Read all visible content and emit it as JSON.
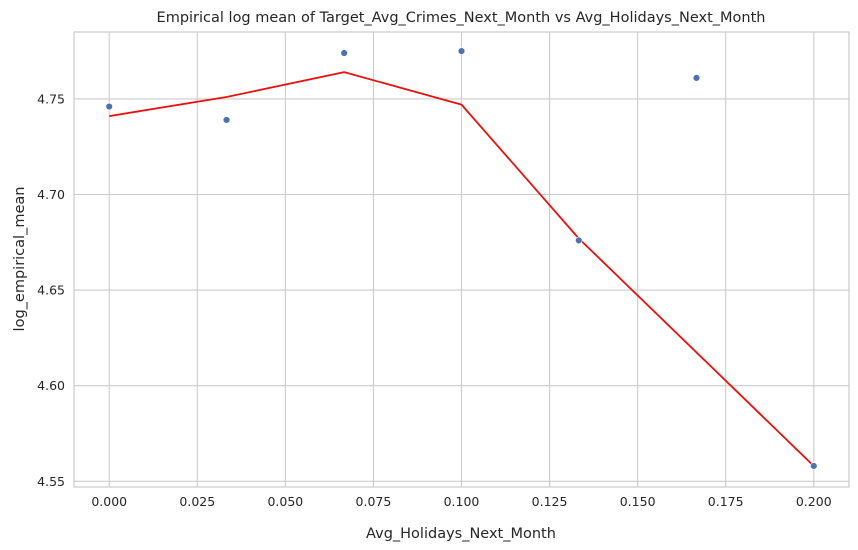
{
  "chart_data": {
    "type": "scatter",
    "title": "Empirical log mean of Target_Avg_Crimes_Next_Month vs Avg_Holidays_Next_Month",
    "xlabel": "Avg_Holidays_Next_Month",
    "ylabel": "log_empirical_mean",
    "xlim": [
      -0.01,
      0.21
    ],
    "ylim": [
      4.547,
      4.785
    ],
    "xticks": [
      0.0,
      0.025,
      0.05,
      0.075,
      0.1,
      0.125,
      0.15,
      0.175,
      0.2
    ],
    "xtick_labels": [
      "0.000",
      "0.025",
      "0.050",
      "0.075",
      "0.100",
      "0.125",
      "0.150",
      "0.175",
      "0.200"
    ],
    "yticks": [
      4.55,
      4.6,
      4.65,
      4.7,
      4.75
    ],
    "ytick_labels": [
      "4.55",
      "4.60",
      "4.65",
      "4.70",
      "4.75"
    ],
    "grid": true,
    "series": [
      {
        "kind": "scatter",
        "color": "#4c72b0",
        "x": [
          0.0,
          0.0333,
          0.0667,
          0.1,
          0.1333,
          0.1667,
          0.2
        ],
        "y": [
          4.746,
          4.739,
          4.774,
          4.775,
          4.676,
          4.761,
          4.558
        ]
      },
      {
        "kind": "line",
        "color": "#e8110e",
        "x": [
          0.0,
          0.0333,
          0.0667,
          0.1,
          0.1333,
          0.2
        ],
        "y": [
          4.741,
          4.751,
          4.764,
          4.747,
          4.677,
          4.558
        ]
      }
    ]
  }
}
